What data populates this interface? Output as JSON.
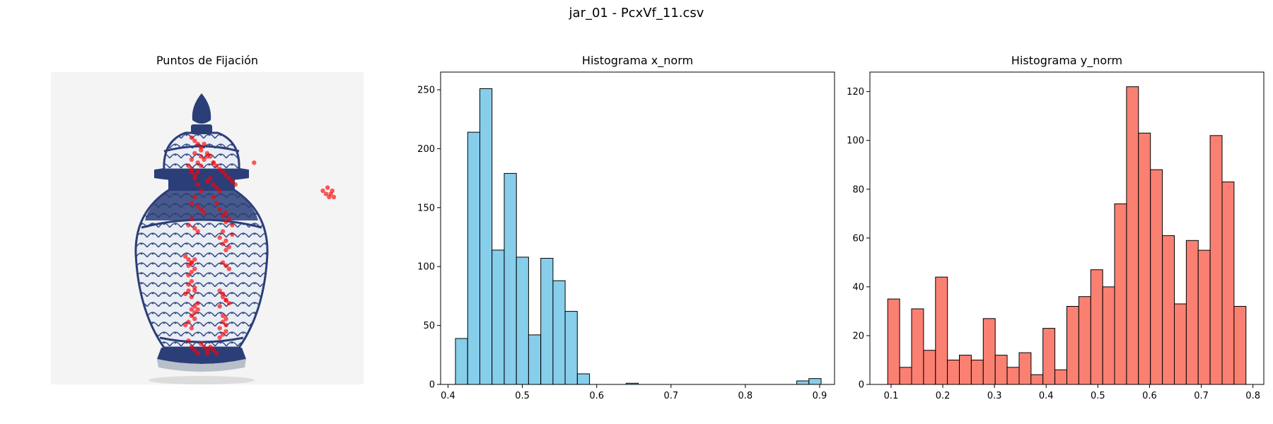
{
  "figure": {
    "title": "jar_01 - PcxVf_11.csv"
  },
  "panels": {
    "image": {
      "title": "Puntos de Fijación",
      "icon": "porcelain-ginger-jar"
    },
    "hist_x": {
      "title": "Histograma x_norm"
    },
    "hist_y": {
      "title": "Histograma y_norm"
    }
  },
  "chart_data": [
    {
      "type": "scatter",
      "title": "Puntos de Fijación",
      "background": "porcelain-jar-photo",
      "marker_color": "#ff0000",
      "axes": "off",
      "x_range": [
        0,
        1
      ],
      "y_range": [
        0,
        1
      ],
      "points_x": [
        0.45,
        0.46,
        0.47,
        0.48,
        0.49,
        0.46,
        0.45,
        0.47,
        0.48,
        0.44,
        0.45,
        0.46,
        0.47,
        0.48,
        0.5,
        0.51,
        0.52,
        0.53,
        0.54,
        0.46,
        0.45,
        0.47,
        0.48,
        0.49,
        0.52,
        0.53,
        0.54,
        0.55,
        0.56,
        0.45,
        0.44,
        0.46,
        0.47,
        0.56,
        0.57,
        0.58,
        0.55,
        0.54,
        0.56,
        0.57,
        0.58,
        0.55,
        0.56,
        0.43,
        0.44,
        0.45,
        0.44,
        0.43,
        0.45,
        0.46,
        0.44,
        0.45,
        0.46,
        0.44,
        0.43,
        0.45,
        0.46,
        0.54,
        0.55,
        0.56,
        0.54,
        0.55,
        0.56,
        0.55,
        0.54,
        0.56,
        0.55,
        0.54,
        0.56,
        0.44,
        0.45,
        0.46,
        0.47,
        0.48,
        0.49,
        0.5,
        0.5,
        0.51,
        0.52,
        0.53,
        0.46,
        0.45,
        0.47,
        0.48,
        0.49,
        0.5,
        0.51,
        0.52,
        0.53,
        0.54,
        0.55,
        0.56,
        0.57,
        0.58,
        0.59,
        0.48,
        0.5,
        0.52,
        0.44,
        0.45,
        0.46,
        0.44,
        0.45,
        0.46,
        0.45,
        0.46,
        0.47,
        0.45,
        0.46,
        0.47,
        0.57,
        0.56,
        0.55,
        0.57,
        0.56,
        0.55,
        0.87,
        0.88,
        0.89,
        0.9,
        0.885,
        0.895,
        0.905,
        0.65
      ],
      "points_y": [
        0.79,
        0.78,
        0.77,
        0.76,
        0.77,
        0.74,
        0.72,
        0.71,
        0.73,
        0.7,
        0.68,
        0.66,
        0.64,
        0.62,
        0.65,
        0.66,
        0.64,
        0.63,
        0.62,
        0.6,
        0.58,
        0.57,
        0.56,
        0.55,
        0.6,
        0.58,
        0.56,
        0.54,
        0.52,
        0.53,
        0.51,
        0.5,
        0.49,
        0.55,
        0.53,
        0.51,
        0.49,
        0.47,
        0.46,
        0.44,
        0.48,
        0.45,
        0.43,
        0.41,
        0.4,
        0.39,
        0.3,
        0.29,
        0.28,
        0.31,
        0.32,
        0.33,
        0.3,
        0.2,
        0.19,
        0.18,
        0.21,
        0.3,
        0.29,
        0.27,
        0.25,
        0.22,
        0.21,
        0.2,
        0.18,
        0.17,
        0.16,
        0.15,
        0.19,
        0.14,
        0.12,
        0.11,
        0.1,
        0.13,
        0.12,
        0.11,
        0.1,
        0.12,
        0.11,
        0.1,
        0.67,
        0.69,
        0.68,
        0.7,
        0.72,
        0.74,
        0.73,
        0.71,
        0.7,
        0.69,
        0.68,
        0.67,
        0.66,
        0.65,
        0.64,
        0.75,
        0.73,
        0.71,
        0.35,
        0.36,
        0.37,
        0.38,
        0.39,
        0.4,
        0.24,
        0.25,
        0.26,
        0.22,
        0.23,
        0.24,
        0.26,
        0.27,
        0.28,
        0.37,
        0.38,
        0.39,
        0.62,
        0.61,
        0.6,
        0.62,
        0.63,
        0.61,
        0.6,
        0.71
      ]
    },
    {
      "type": "bar",
      "title": "Histograma x_norm",
      "color": "#87ceeb",
      "edgecolor": "#000000",
      "bins": [
        [
          0.41,
          0.4264
        ],
        [
          0.4264,
          0.4428
        ],
        [
          0.4428,
          0.4592
        ],
        [
          0.4592,
          0.4756
        ],
        [
          0.4756,
          0.492
        ],
        [
          0.492,
          0.5084
        ],
        [
          0.5084,
          0.5248
        ],
        [
          0.5248,
          0.5412
        ],
        [
          0.5412,
          0.5576
        ],
        [
          0.5576,
          0.574
        ],
        [
          0.574,
          0.5904
        ],
        [
          0.5904,
          0.6068
        ],
        [
          0.6068,
          0.6232
        ],
        [
          0.6232,
          0.6396
        ],
        [
          0.6396,
          0.656
        ],
        [
          0.656,
          0.6724
        ],
        [
          0.6724,
          0.6888
        ],
        [
          0.6888,
          0.7052
        ],
        [
          0.7052,
          0.7216
        ],
        [
          0.7216,
          0.738
        ],
        [
          0.738,
          0.7544
        ],
        [
          0.7544,
          0.7708
        ],
        [
          0.7708,
          0.7872
        ],
        [
          0.7872,
          0.8036
        ],
        [
          0.8036,
          0.82
        ],
        [
          0.82,
          0.8364
        ],
        [
          0.8364,
          0.8528
        ],
        [
          0.8528,
          0.8692
        ],
        [
          0.8692,
          0.8856
        ],
        [
          0.8856,
          0.902
        ]
      ],
      "values": [
        39,
        214,
        251,
        114,
        179,
        108,
        42,
        107,
        88,
        62,
        9,
        0,
        0,
        0,
        1,
        0,
        0,
        0,
        0,
        0,
        0,
        0,
        0,
        0,
        0,
        0,
        0,
        0,
        3,
        5
      ],
      "xlim": [
        0.39,
        0.92
      ],
      "ylim": [
        0,
        265
      ],
      "xticks": [
        0.4,
        0.5,
        0.6,
        0.7,
        0.8,
        0.9
      ],
      "xtick_labels": [
        "0.4",
        "0.5",
        "0.6",
        "0.7",
        "0.8",
        "0.9"
      ],
      "yticks": [
        0,
        50,
        100,
        150,
        200,
        250
      ],
      "ytick_labels": [
        "0",
        "50",
        "100",
        "150",
        "200",
        "250"
      ]
    },
    {
      "type": "bar",
      "title": "Histograma y_norm",
      "color": "#fa8072",
      "edgecolor": "#000000",
      "bins": [
        [
          0.0935,
          0.1166
        ],
        [
          0.1166,
          0.1397
        ],
        [
          0.1397,
          0.1628
        ],
        [
          0.1628,
          0.1859
        ],
        [
          0.1859,
          0.209
        ],
        [
          0.209,
          0.2321
        ],
        [
          0.2321,
          0.2552
        ],
        [
          0.2552,
          0.2783
        ],
        [
          0.2783,
          0.3014
        ],
        [
          0.3014,
          0.3245
        ],
        [
          0.3245,
          0.3476
        ],
        [
          0.3476,
          0.3707
        ],
        [
          0.3707,
          0.3938
        ],
        [
          0.3938,
          0.4169
        ],
        [
          0.4169,
          0.44
        ],
        [
          0.44,
          0.4631
        ],
        [
          0.4631,
          0.4862
        ],
        [
          0.4862,
          0.5093
        ],
        [
          0.5093,
          0.5324
        ],
        [
          0.5324,
          0.5555
        ],
        [
          0.5555,
          0.5786
        ],
        [
          0.5786,
          0.6017
        ],
        [
          0.6017,
          0.6248
        ],
        [
          0.6248,
          0.6479
        ],
        [
          0.6479,
          0.671
        ],
        [
          0.671,
          0.6941
        ],
        [
          0.6941,
          0.7172
        ],
        [
          0.7172,
          0.7403
        ],
        [
          0.7403,
          0.7634
        ],
        [
          0.7634,
          0.7865
        ]
      ],
      "values": [
        35,
        7,
        31,
        14,
        44,
        10,
        12,
        10,
        27,
        12,
        7,
        13,
        4,
        23,
        6,
        32,
        36,
        47,
        40,
        74,
        122,
        103,
        88,
        61,
        33,
        59,
        55,
        102,
        83,
        32
      ],
      "xlim": [
        0.059,
        0.821
      ],
      "ylim": [
        0,
        128
      ],
      "xticks": [
        0.1,
        0.2,
        0.3,
        0.4,
        0.5,
        0.6,
        0.7,
        0.8
      ],
      "xtick_labels": [
        "0.1",
        "0.2",
        "0.3",
        "0.4",
        "0.5",
        "0.6",
        "0.7",
        "0.8"
      ],
      "yticks": [
        0,
        20,
        40,
        60,
        80,
        100,
        120
      ],
      "ytick_labels": [
        "0",
        "20",
        "40",
        "60",
        "80",
        "100",
        "120"
      ]
    }
  ]
}
